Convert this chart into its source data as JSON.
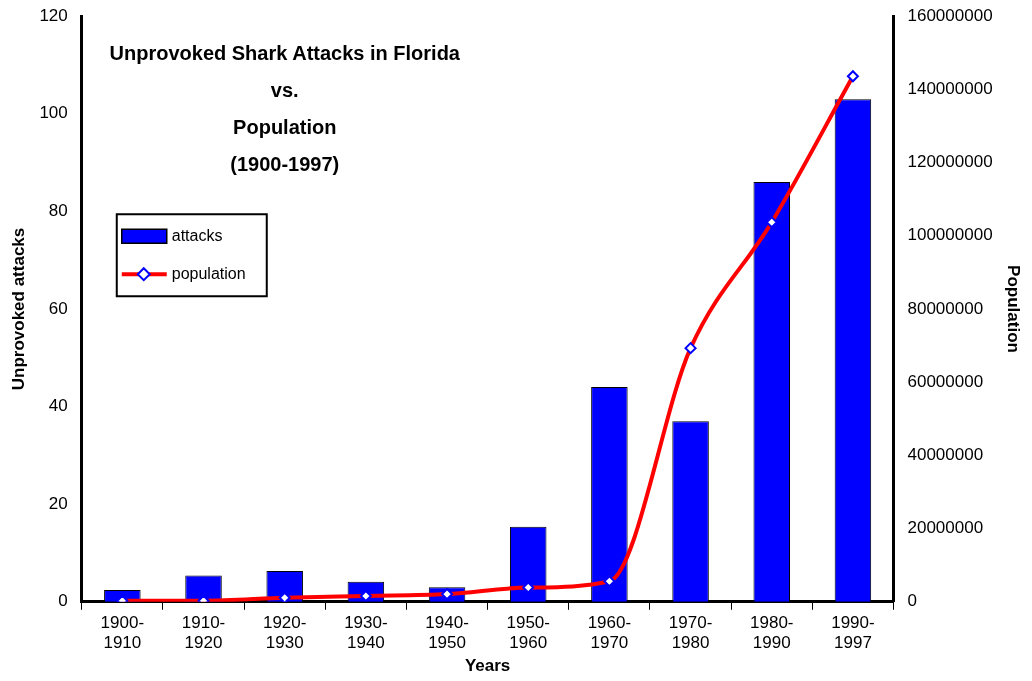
{
  "chart_data": {
    "type": "bar",
    "title": "Unprovoked Shark Attacks in Florida\nvs.\nPopulation\n(1900-1997)",
    "xlabel": "Years",
    "ylabel": "Unprovoked attacks",
    "y2label": "Population",
    "categories": [
      "1900-1910",
      "1910-1920",
      "1920-1930",
      "1930-1940",
      "1940-1950",
      "1950-1960",
      "1960-1970",
      "1970-1980",
      "1980-1990",
      "1990-1997"
    ],
    "series": [
      {
        "name": "attacks",
        "color": "#0000ff",
        "values": [
          2.4,
          5.4,
          6.3,
          4.1,
          3.0,
          15.4,
          44,
          37,
          86,
          103
        ]
      },
      {
        "name": "population",
        "type": "line",
        "axis": "y2",
        "color": "#ff0000",
        "marker": "diamond",
        "values": [
          300000,
          300000,
          1100000,
          1600000,
          2100000,
          3900000,
          5600000,
          69300000,
          103700000,
          143600000
        ]
      }
    ],
    "ylim": [
      0,
      120
    ],
    "yticks": [
      0,
      20,
      40,
      60,
      80,
      100,
      120
    ],
    "y2lim": [
      0,
      160000000
    ],
    "y2ticks": [
      0,
      20000000,
      40000000,
      60000000,
      80000000,
      100000000,
      120000000,
      140000000,
      160000000
    ],
    "grid": false,
    "legend": "top left"
  }
}
